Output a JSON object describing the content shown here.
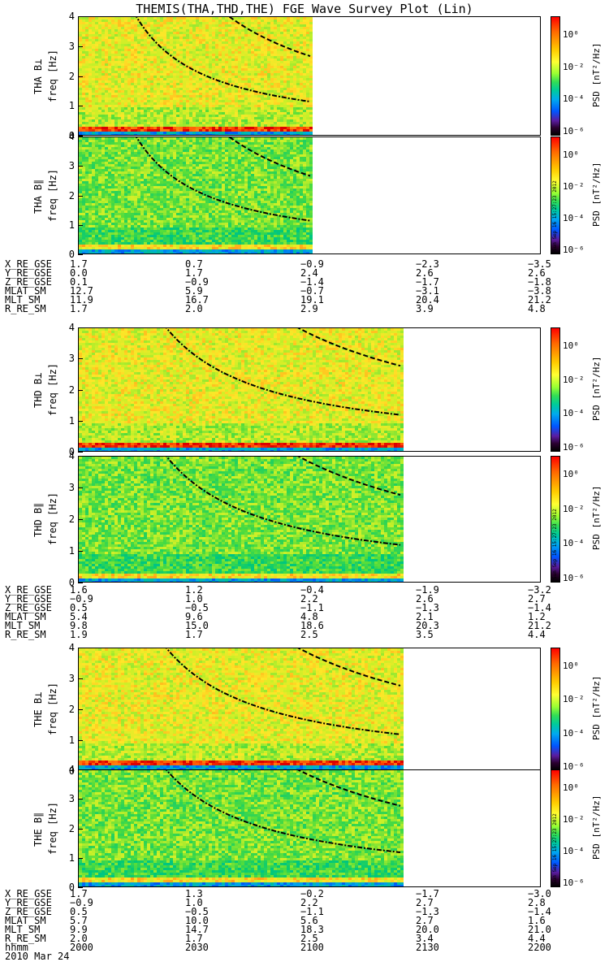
{
  "title": "THEMIS(THA,THD,THE) FGE Wave Survey Plot (Lin)",
  "chart_data": [
    {
      "type": "heatmap",
      "probe": "THA",
      "ylabel": "THA B⊥",
      "sublabel": "freq [Hz]",
      "xlim": [
        2000,
        2200
      ],
      "ylim": [
        0,
        4
      ],
      "data_end": 2100,
      "cbar_label": "PSD [nT²/Hz]",
      "yticks": [
        "0",
        "1",
        "2",
        "3",
        "4"
      ]
    },
    {
      "type": "heatmap",
      "probe": "THA",
      "ylabel": "THA B∥",
      "sublabel": "freq [Hz]",
      "xlim": [
        2000,
        2200
      ],
      "ylim": [
        0,
        4
      ],
      "data_end": 2100,
      "cbar_label": "PSD [nT²/Hz]",
      "yticks": [
        "0",
        "1",
        "2",
        "3",
        "4"
      ]
    },
    {
      "type": "heatmap",
      "probe": "THD",
      "ylabel": "THD B⊥",
      "sublabel": "freq [Hz]",
      "xlim": [
        2000,
        2200
      ],
      "ylim": [
        0,
        4
      ],
      "data_end": 2139,
      "cbar_label": "PSD [nT²/Hz]",
      "yticks": [
        "0",
        "1",
        "2",
        "3",
        "4"
      ]
    },
    {
      "type": "heatmap",
      "probe": "THD",
      "ylabel": "THD B∥",
      "sublabel": "freq [Hz]",
      "xlim": [
        2000,
        2200
      ],
      "ylim": [
        0,
        4
      ],
      "data_end": 2139,
      "cbar_label": "PSD [nT²/Hz]",
      "yticks": [
        "0",
        "1",
        "2",
        "3",
        "4"
      ]
    },
    {
      "type": "heatmap",
      "probe": "THE",
      "ylabel": "THE B⊥",
      "sublabel": "freq [Hz]",
      "xlim": [
        2000,
        2200
      ],
      "ylim": [
        0,
        4
      ],
      "data_end": 2139,
      "cbar_label": "PSD [nT²/Hz]",
      "yticks": [
        "0",
        "1",
        "2",
        "3",
        "4"
      ]
    },
    {
      "type": "heatmap",
      "probe": "THE",
      "ylabel": "THE B∥",
      "sublabel": "freq [Hz]",
      "xlim": [
        2000,
        2200
      ],
      "ylim": [
        0,
        4
      ],
      "data_end": 2139,
      "cbar_label": "PSD [nT²/Hz]",
      "yticks": [
        "0",
        "1",
        "2",
        "3",
        "4"
      ]
    }
  ],
  "colorbar_ticks": [
    "10⁰",
    "10⁻²",
    "10⁻⁴",
    "10⁻⁶"
  ],
  "orbit_tables": [
    {
      "rows": [
        [
          "X_RE_GSE",
          "1.7",
          "0.7",
          "−0.9",
          "−2.3",
          "−3.5"
        ],
        [
          "Y_RE_GSE",
          "0.0",
          "1.7",
          "2.4",
          "2.6",
          "2.6"
        ],
        [
          "Z_RE_GSE",
          "0.1",
          "−0.9",
          "−1.4",
          "−1.7",
          "−1.8"
        ],
        [
          "MLAT_SM",
          "12.7",
          "5.9",
          "−0.7",
          "−3.1",
          "−3.8"
        ],
        [
          "MLT_SM",
          "11.9",
          "16.7",
          "19.1",
          "20.4",
          "21.2"
        ],
        [
          "R_RE_SM",
          "1.7",
          "2.0",
          "2.9",
          "3.9",
          "4.8"
        ]
      ]
    },
    {
      "rows": [
        [
          "X_RE_GSE",
          "1.6",
          "1.2",
          "−0.4",
          "−1.9",
          "−3.2"
        ],
        [
          "Y_RE_GSE",
          "−0.9",
          "1.0",
          "2.2",
          "2.6",
          "2.7"
        ],
        [
          "Z_RE_GSE",
          "0.5",
          "−0.5",
          "−1.1",
          "−1.3",
          "−1.4"
        ],
        [
          "MLAT_SM",
          "5.4",
          "9.6",
          "4.8",
          "2.1",
          "1.2"
        ],
        [
          "MLT_SM",
          "9.8",
          "15.0",
          "18.6",
          "20.3",
          "21.2"
        ],
        [
          "R_RE_SM",
          "1.9",
          "1.7",
          "2.5",
          "3.5",
          "4.4"
        ]
      ]
    },
    {
      "rows": [
        [
          "X_RE_GSE",
          "1.7",
          "1.3",
          "−0.2",
          "−1.7",
          "−3.0"
        ],
        [
          "Y_RE_GSE",
          "−0.9",
          "1.0",
          "2.2",
          "2.7",
          "2.8"
        ],
        [
          "Z_RE_GSE",
          "0.5",
          "−0.5",
          "−1.1",
          "−1.3",
          "−1.4"
        ],
        [
          "MLAT_SM",
          "5.7",
          "10.0",
          "5.6",
          "2.7",
          "1.6"
        ],
        [
          "MLT_SM",
          "9.9",
          "14.7",
          "18.3",
          "20.0",
          "21.0"
        ],
        [
          "R_RE_SM",
          "2.0",
          "1.7",
          "2.5",
          "3.4",
          "4.4"
        ],
        [
          "hhmm",
          "2000",
          "2030",
          "2100",
          "2130",
          "2200"
        ]
      ]
    }
  ],
  "date_label": "2010 Mar 24",
  "stamp": "Sun Sep 16 15:27:23 2012"
}
